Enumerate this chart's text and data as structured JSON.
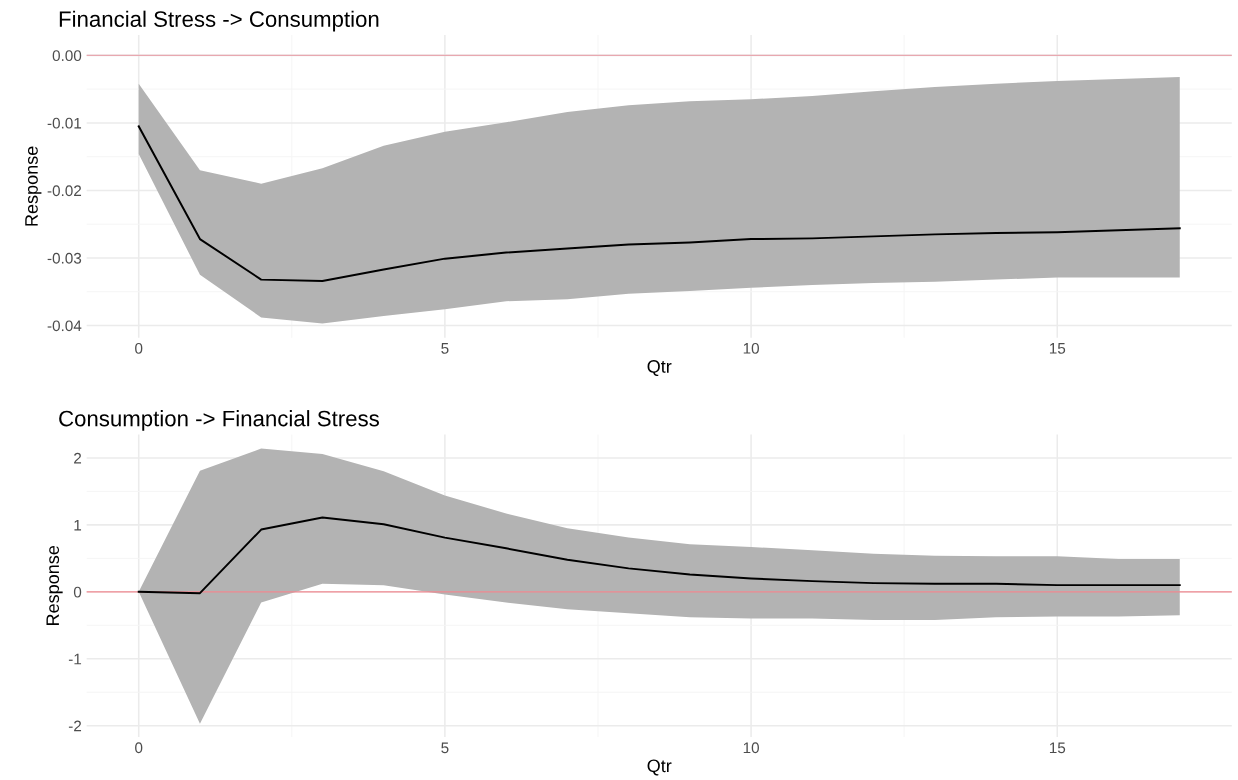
{
  "chart_data": [
    {
      "type": "line",
      "title": "Financial Stress -> Consumption",
      "xlabel": "Qtr",
      "ylabel": "Response",
      "x": [
        0,
        1,
        2,
        3,
        4,
        5,
        6,
        7,
        8,
        9,
        10,
        11,
        12,
        13,
        14,
        15,
        16,
        17
      ],
      "series": [
        {
          "color": "#000000",
          "values": [
            -0.0105,
            -0.0272,
            -0.0332,
            -0.0334,
            -0.0317,
            -0.0301,
            -0.0292,
            -0.0286,
            -0.028,
            -0.0277,
            -0.0272,
            -0.0271,
            -0.0268,
            -0.0265,
            -0.0263,
            -0.0262,
            -0.0259,
            -0.0256
          ],
          "lower": [
            -0.0146,
            -0.0325,
            -0.0388,
            -0.0397,
            -0.0386,
            -0.0376,
            -0.0364,
            -0.0361,
            -0.0353,
            -0.0349,
            -0.0344,
            -0.034,
            -0.0337,
            -0.0335,
            -0.0332,
            -0.0329,
            -0.0329,
            -0.0329
          ],
          "upper": [
            -0.0042,
            -0.017,
            -0.019,
            -0.0167,
            -0.0134,
            -0.0113,
            -0.0099,
            -0.0084,
            -0.0074,
            -0.0068,
            -0.0065,
            -0.006,
            -0.0053,
            -0.0047,
            -0.0042,
            -0.0038,
            -0.0035,
            -0.0032
          ]
        }
      ],
      "xlim": [
        -0.85,
        17.85
      ],
      "xticks": [
        0,
        5,
        10,
        15
      ],
      "ylim": [
        -0.0418,
        0.003
      ],
      "yticks": [
        {
          "value": -0.04,
          "label": "-0.04"
        },
        {
          "value": -0.03,
          "label": "-0.03"
        },
        {
          "value": -0.02,
          "label": "-0.02"
        },
        {
          "value": -0.01,
          "label": "-0.01"
        },
        {
          "value": 0,
          "label": "0.00"
        }
      ],
      "ref_lines": [
        {
          "axis": "y",
          "value": 0,
          "color": "#e8a8b0"
        }
      ],
      "grid": true,
      "marker": "none",
      "line_style": "solid",
      "legend": false
    },
    {
      "type": "line",
      "title": "Consumption -> Financial Stress",
      "xlabel": "Qtr",
      "ylabel": "Response",
      "x": [
        0,
        1,
        2,
        3,
        4,
        5,
        6,
        7,
        8,
        9,
        10,
        11,
        12,
        13,
        14,
        15,
        16,
        17
      ],
      "series": [
        {
          "color": "#000000",
          "values": [
            0,
            -0.02,
            0.93,
            1.11,
            1.01,
            0.81,
            0.65,
            0.48,
            0.35,
            0.26,
            0.2,
            0.16,
            0.13,
            0.12,
            0.12,
            0.1,
            0.1,
            0.1
          ],
          "lower": [
            0,
            -1.97,
            -0.16,
            0.12,
            0.1,
            -0.04,
            -0.16,
            -0.26,
            -0.32,
            -0.38,
            -0.4,
            -0.4,
            -0.42,
            -0.42,
            -0.38,
            -0.37,
            -0.37,
            -0.35
          ],
          "upper": [
            0,
            1.81,
            2.14,
            2.06,
            1.8,
            1.44,
            1.17,
            0.95,
            0.81,
            0.71,
            0.67,
            0.62,
            0.57,
            0.54,
            0.53,
            0.53,
            0.49,
            0.49
          ]
        }
      ],
      "xlim": [
        -0.85,
        17.85
      ],
      "xticks": [
        0,
        5,
        10,
        15
      ],
      "ylim": [
        -2.17,
        2.35
      ],
      "yticks": [
        {
          "value": -2,
          "label": "-2"
        },
        {
          "value": -1,
          "label": "-1"
        },
        0,
        1,
        2
      ],
      "ref_lines": [
        {
          "axis": "y",
          "value": 0,
          "color": "#f08890"
        }
      ],
      "grid": true,
      "marker": "none",
      "line_style": "solid",
      "legend": false
    }
  ]
}
